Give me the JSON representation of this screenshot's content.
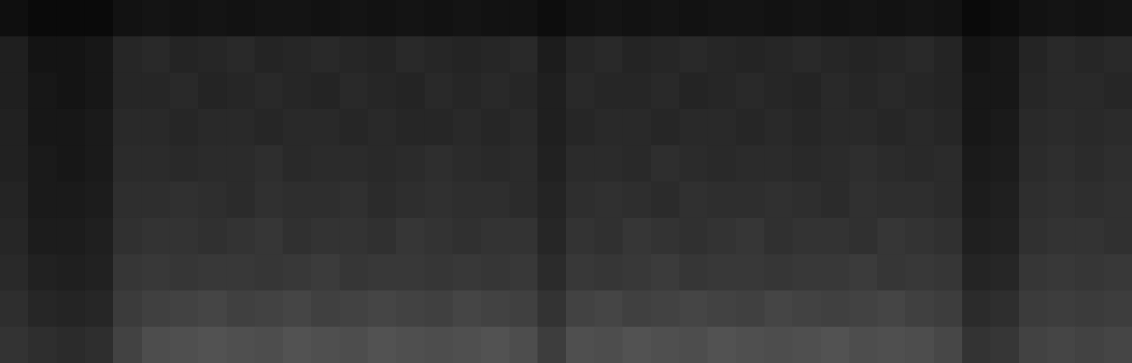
{
  "chart_data": {
    "type": "heatmap",
    "tick_labels": false,
    "color": "#ffffff",
    "zlim": [
      0,
      100
    ],
    "cells": [
      [
        6,
        4,
        4,
        4,
        7,
        8,
        7,
        8,
        7,
        8,
        8,
        7,
        8,
        7,
        8,
        7,
        8,
        7,
        7,
        5,
        7,
        8,
        7,
        8,
        7,
        8,
        8,
        7,
        8,
        7,
        8,
        7,
        8,
        7,
        4,
        5,
        7,
        8,
        7,
        8
      ],
      [
        12,
        8,
        8,
        9,
        15,
        16,
        14,
        15,
        16,
        14,
        15,
        16,
        15,
        14,
        16,
        15,
        14,
        15,
        16,
        11,
        15,
        16,
        14,
        15,
        16,
        15,
        14,
        15,
        16,
        15,
        14,
        15,
        16,
        14,
        8,
        9,
        14,
        16,
        15,
        16
      ],
      [
        12,
        9,
        8,
        9,
        15,
        15,
        16,
        14,
        15,
        16,
        15,
        14,
        16,
        15,
        14,
        16,
        15,
        16,
        15,
        12,
        16,
        15,
        15,
        16,
        14,
        15,
        16,
        15,
        14,
        16,
        15,
        16,
        15,
        14,
        9,
        9,
        15,
        16,
        16,
        15
      ],
      [
        13,
        9,
        9,
        10,
        16,
        16,
        15,
        16,
        16,
        15,
        16,
        16,
        15,
        16,
        15,
        15,
        16,
        15,
        16,
        12,
        15,
        16,
        16,
        15,
        16,
        16,
        15,
        16,
        15,
        16,
        16,
        15,
        16,
        15,
        9,
        10,
        16,
        17,
        16,
        17
      ],
      [
        13,
        10,
        9,
        10,
        17,
        17,
        16,
        17,
        17,
        18,
        16,
        17,
        17,
        16,
        17,
        18,
        17,
        16,
        17,
        13,
        17,
        17,
        16,
        18,
        17,
        16,
        17,
        17,
        16,
        17,
        18,
        17,
        16,
        17,
        10,
        11,
        17,
        18,
        17,
        18
      ],
      [
        14,
        10,
        10,
        11,
        18,
        18,
        19,
        18,
        17,
        19,
        18,
        18,
        19,
        17,
        18,
        19,
        18,
        18,
        17,
        14,
        18,
        19,
        18,
        17,
        19,
        18,
        18,
        19,
        18,
        17,
        19,
        18,
        18,
        17,
        11,
        12,
        18,
        19,
        18,
        19
      ],
      [
        15,
        11,
        11,
        12,
        19,
        20,
        20,
        19,
        20,
        21,
        19,
        20,
        20,
        19,
        21,
        20,
        19,
        20,
        20,
        15,
        20,
        19,
        21,
        20,
        19,
        20,
        21,
        19,
        20,
        20,
        19,
        21,
        20,
        19,
        12,
        13,
        19,
        20,
        20,
        19
      ],
      [
        16,
        13,
        12,
        13,
        21,
        22,
        21,
        22,
        22,
        21,
        22,
        23,
        21,
        22,
        22,
        21,
        22,
        21,
        22,
        17,
        22,
        21,
        22,
        23,
        21,
        22,
        22,
        21,
        22,
        22,
        23,
        21,
        22,
        21,
        14,
        15,
        21,
        22,
        21,
        22
      ],
      [
        18,
        15,
        14,
        15,
        23,
        25,
        26,
        27,
        25,
        26,
        27,
        25,
        26,
        27,
        26,
        25,
        27,
        26,
        25,
        20,
        26,
        27,
        25,
        26,
        27,
        26,
        25,
        27,
        26,
        25,
        26,
        27,
        25,
        24,
        17,
        18,
        23,
        24,
        23,
        24
      ],
      [
        20,
        18,
        17,
        18,
        26,
        30,
        31,
        32,
        31,
        30,
        32,
        31,
        30,
        32,
        31,
        30,
        31,
        32,
        30,
        24,
        31,
        30,
        32,
        31,
        30,
        32,
        31,
        30,
        31,
        32,
        30,
        31,
        30,
        28,
        20,
        21,
        26,
        27,
        26,
        27
      ]
    ]
  }
}
